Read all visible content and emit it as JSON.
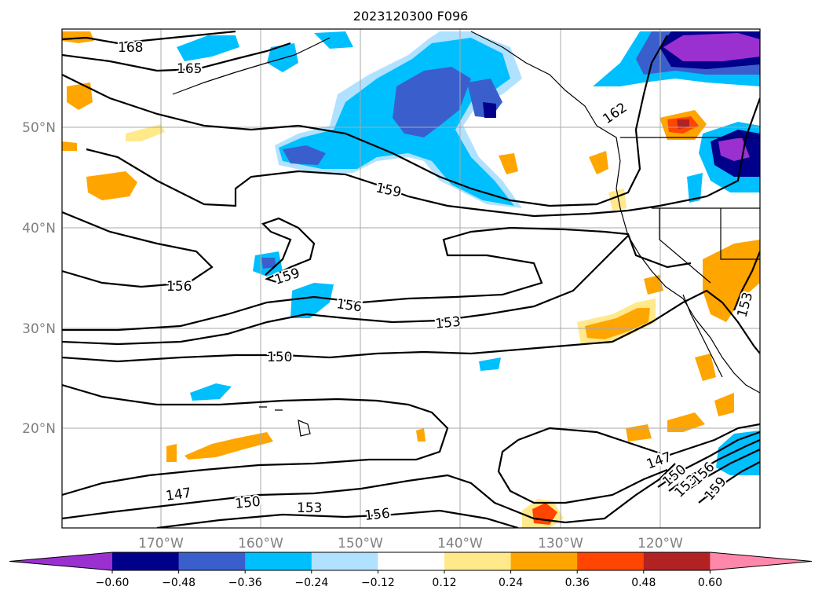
{
  "title": "2023120300 F096",
  "lat_labels": [
    "50°N",
    "40°N",
    "30°N",
    "20°N"
  ],
  "lon_labels": [
    "170°W",
    "160°W",
    "150°W",
    "140°W",
    "130°W",
    "120°W"
  ],
  "colorbar": {
    "ticks": [
      "−0.60",
      "−0.48",
      "−0.36",
      "−0.24",
      "−0.12",
      "0.12",
      "0.24",
      "0.36",
      "0.48",
      "0.60"
    ],
    "colors": [
      "#9b30d0",
      "#00008b",
      "#3a5fcd",
      "#00bfff",
      "#b0e2ff",
      "#ffffff",
      "#ffe98a",
      "#ffa500",
      "#ff4500",
      "#b22222",
      "#ff88aa"
    ]
  },
  "contour_labels": [
    "168",
    "165",
    "162",
    "159",
    "159",
    "156",
    "156",
    "153",
    "153",
    "150",
    "150",
    "147",
    "147",
    "150",
    "153",
    "156",
    "159"
  ],
  "fill_colors": {
    "blue_light": "#b0e2ff",
    "blue": "#00bfff",
    "blue_mid": "#3a5fcd",
    "navy": "#00008b",
    "purple": "#9b30d0",
    "yellow": "#ffe98a",
    "orange": "#ffa500",
    "red_orange": "#ff4500",
    "dark_red": "#b22222"
  }
}
